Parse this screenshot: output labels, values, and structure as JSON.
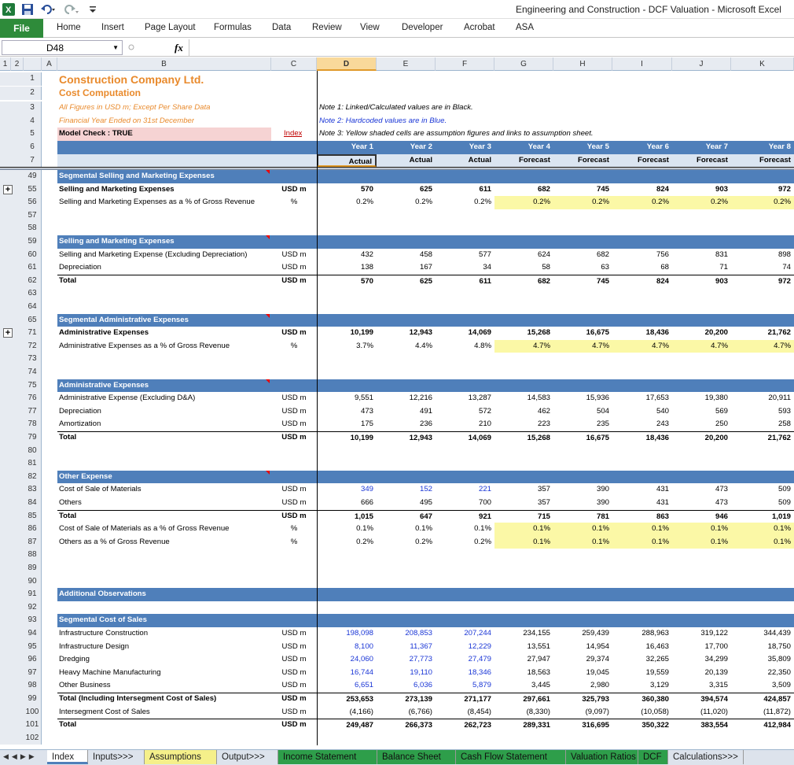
{
  "window": {
    "title": "Engineering and Construction - DCF Valuation  -  Microsoft Excel"
  },
  "ribbon": {
    "file": "File",
    "tabs": [
      "Home",
      "Insert",
      "Page Layout",
      "Formulas",
      "Data",
      "Review",
      "View",
      "Developer",
      "Acrobat",
      "ASA"
    ]
  },
  "formula_bar": {
    "name_box": "D48",
    "fx": "fx",
    "formula": ""
  },
  "outline_levels": [
    "1",
    "2"
  ],
  "columns": [
    "A",
    "B",
    "C",
    "D",
    "E",
    "F",
    "G",
    "H",
    "I",
    "J",
    "K"
  ],
  "selected_column": "D",
  "header_rows": {
    "r1": {
      "num": "1",
      "text": "Construction Company Ltd."
    },
    "r2": {
      "num": "2",
      "text": "Cost Computation"
    },
    "r3": {
      "num": "3",
      "text": "All Figures in USD m; Except Per Share Data",
      "note": "Note 1: Linked/Calculated values are in Black."
    },
    "r4": {
      "num": "4",
      "text": "Financial Year Ended on 31st December",
      "note": "Note 2: Hardcoded values are in Blue."
    },
    "r5": {
      "num": "5",
      "text": "Model Check : TRUE",
      "link": "Index",
      "note": "Note 3: Yellow shaded cells are assumption figures and links to assumption sheet."
    },
    "r6": {
      "num": "6",
      "years": [
        "Year 1",
        "Year 2",
        "Year 3",
        "Year 4",
        "Year 5",
        "Year 6",
        "Year 7",
        "Year 8"
      ]
    },
    "r7": {
      "num": "7",
      "types": [
        "Actual",
        "Actual",
        "Actual",
        "Forecast",
        "Forecast",
        "Forecast",
        "Forecast",
        "Forecast"
      ]
    }
  },
  "rows": [
    {
      "num": "49",
      "kind": "band",
      "label": "Segmental Selling and Marketing Expenses"
    },
    {
      "num": "55",
      "kind": "data",
      "plus": true,
      "bold": true,
      "label": "Selling and Marketing Expenses",
      "unit": "USD m",
      "values": [
        "570",
        "625",
        "611",
        "682",
        "745",
        "824",
        "903",
        "972"
      ]
    },
    {
      "num": "56",
      "kind": "data",
      "label": "Selling and Marketing Expenses as a % of Gross Revenue",
      "unit": "%",
      "yellow": true,
      "values": [
        "0.2%",
        "0.2%",
        "0.2%",
        "0.2%",
        "0.2%",
        "0.2%",
        "0.2%",
        "0.2%"
      ]
    },
    {
      "num": "57",
      "kind": "blank"
    },
    {
      "num": "58",
      "kind": "blank"
    },
    {
      "num": "59",
      "kind": "band",
      "label": "Selling and Marketing Expenses"
    },
    {
      "num": "60",
      "kind": "data",
      "label": "Selling and Marketing Expense (Excluding Depreciation)",
      "unit": "USD m",
      "values": [
        "432",
        "458",
        "577",
        "624",
        "682",
        "756",
        "831",
        "898"
      ]
    },
    {
      "num": "61",
      "kind": "data",
      "label": "Depreciation",
      "unit": "USD m",
      "values": [
        "138",
        "167",
        "34",
        "58",
        "63",
        "68",
        "71",
        "74"
      ]
    },
    {
      "num": "62",
      "kind": "data",
      "total": true,
      "bold": true,
      "label": "Total",
      "unit": "USD m",
      "values": [
        "570",
        "625",
        "611",
        "682",
        "745",
        "824",
        "903",
        "972"
      ]
    },
    {
      "num": "63",
      "kind": "blank"
    },
    {
      "num": "64",
      "kind": "blank"
    },
    {
      "num": "65",
      "kind": "band",
      "label": "Segmental Administrative Expenses"
    },
    {
      "num": "71",
      "kind": "data",
      "plus": true,
      "bold": true,
      "label": "Administrative Expenses",
      "unit": "USD m",
      "values": [
        "10,199",
        "12,943",
        "14,069",
        "15,268",
        "16,675",
        "18,436",
        "20,200",
        "21,762"
      ]
    },
    {
      "num": "72",
      "kind": "data",
      "label": "Administrative Expenses as a % of Gross Revenue",
      "unit": "%",
      "yellow": true,
      "values": [
        "3.7%",
        "4.4%",
        "4.8%",
        "4.7%",
        "4.7%",
        "4.7%",
        "4.7%",
        "4.7%"
      ]
    },
    {
      "num": "73",
      "kind": "blank"
    },
    {
      "num": "74",
      "kind": "blank"
    },
    {
      "num": "75",
      "kind": "band",
      "label": "Administrative Expenses"
    },
    {
      "num": "76",
      "kind": "data",
      "label": "Administrative Expense (Excluding D&A)",
      "unit": "USD m",
      "values": [
        "9,551",
        "12,216",
        "13,287",
        "14,583",
        "15,936",
        "17,653",
        "19,380",
        "20,911"
      ]
    },
    {
      "num": "77",
      "kind": "data",
      "label": "Depreciation",
      "unit": "USD m",
      "values": [
        "473",
        "491",
        "572",
        "462",
        "504",
        "540",
        "569",
        "593"
      ]
    },
    {
      "num": "78",
      "kind": "data",
      "label": "Amortization",
      "unit": "USD m",
      "values": [
        "175",
        "236",
        "210",
        "223",
        "235",
        "243",
        "250",
        "258"
      ]
    },
    {
      "num": "79",
      "kind": "data",
      "total": true,
      "bold": true,
      "label": "Total",
      "unit": "USD m",
      "values": [
        "10,199",
        "12,943",
        "14,069",
        "15,268",
        "16,675",
        "18,436",
        "20,200",
        "21,762"
      ]
    },
    {
      "num": "80",
      "kind": "blank"
    },
    {
      "num": "81",
      "kind": "blank"
    },
    {
      "num": "82",
      "kind": "band",
      "label": "Other Expense"
    },
    {
      "num": "83",
      "kind": "data",
      "label": "Cost of Sale of Materials",
      "unit": "USD m",
      "blue_hist": true,
      "values": [
        "349",
        "152",
        "221",
        "357",
        "390",
        "431",
        "473",
        "509"
      ]
    },
    {
      "num": "84",
      "kind": "data",
      "label": "Others",
      "unit": "USD m",
      "values": [
        "666",
        "495",
        "700",
        "357",
        "390",
        "431",
        "473",
        "509"
      ]
    },
    {
      "num": "85",
      "kind": "data",
      "total": true,
      "bold": true,
      "label": "Total",
      "unit": "USD m",
      "values": [
        "1,015",
        "647",
        "921",
        "715",
        "781",
        "863",
        "946",
        "1,019"
      ]
    },
    {
      "num": "86",
      "kind": "data",
      "label": "Cost of Sale of Materials as a % of Gross Revenue",
      "unit": "%",
      "yellow": true,
      "values": [
        "0.1%",
        "0.1%",
        "0.1%",
        "0.1%",
        "0.1%",
        "0.1%",
        "0.1%",
        "0.1%"
      ]
    },
    {
      "num": "87",
      "kind": "data",
      "label": "Others as a % of Gross Revenue",
      "unit": "%",
      "yellow": true,
      "values": [
        "0.2%",
        "0.2%",
        "0.2%",
        "0.1%",
        "0.1%",
        "0.1%",
        "0.1%",
        "0.1%"
      ]
    },
    {
      "num": "88",
      "kind": "blank"
    },
    {
      "num": "89",
      "kind": "blank"
    },
    {
      "num": "90",
      "kind": "blank"
    },
    {
      "num": "91",
      "kind": "band",
      "label": "Additional Observations",
      "no_tri": true
    },
    {
      "num": "92",
      "kind": "blank"
    },
    {
      "num": "93",
      "kind": "band",
      "label": "Segmental Cost of Sales",
      "no_tri": true
    },
    {
      "num": "94",
      "kind": "data",
      "label": "Infrastructure Construction",
      "unit": "USD m",
      "blue_hist": true,
      "values": [
        "198,098",
        "208,853",
        "207,244",
        "234,155",
        "259,439",
        "288,963",
        "319,122",
        "344,439"
      ]
    },
    {
      "num": "95",
      "kind": "data",
      "label": "Infrastructure Design",
      "unit": "USD m",
      "blue_hist": true,
      "values": [
        "8,100",
        "11,367",
        "12,229",
        "13,551",
        "14,954",
        "16,463",
        "17,700",
        "18,750"
      ]
    },
    {
      "num": "96",
      "kind": "data",
      "label": "Dredging",
      "unit": "USD m",
      "blue_hist": true,
      "values": [
        "24,060",
        "27,773",
        "27,479",
        "27,947",
        "29,374",
        "32,265",
        "34,299",
        "35,809"
      ]
    },
    {
      "num": "97",
      "kind": "data",
      "label": "Heavy Machine Manufacturing",
      "unit": "USD m",
      "blue_hist": true,
      "values": [
        "16,744",
        "19,110",
        "18,346",
        "18,563",
        "19,045",
        "19,559",
        "20,139",
        "22,350"
      ]
    },
    {
      "num": "98",
      "kind": "data",
      "label": "Other Business",
      "unit": "USD m",
      "blue_hist": true,
      "values": [
        "6,651",
        "6,036",
        "5,879",
        "3,445",
        "2,980",
        "3,129",
        "3,315",
        "3,509"
      ]
    },
    {
      "num": "99",
      "kind": "data",
      "total": true,
      "bold": true,
      "label": "Total (Including Intersegment Cost of Sales)",
      "unit": "USD m",
      "values": [
        "253,653",
        "273,139",
        "271,177",
        "297,661",
        "325,793",
        "360,380",
        "394,574",
        "424,857"
      ]
    },
    {
      "num": "100",
      "kind": "data",
      "label": "Intersegment Cost of Sales",
      "unit": "USD m",
      "values": [
        "(4,166)",
        "(6,766)",
        "(8,454)",
        "(8,330)",
        "(9,097)",
        "(10,058)",
        "(11,020)",
        "(11,872)"
      ]
    },
    {
      "num": "101",
      "kind": "data",
      "total": true,
      "bold": true,
      "label": "Total",
      "unit": "USD m",
      "values": [
        "249,487",
        "266,373",
        "262,723",
        "289,331",
        "316,695",
        "350,322",
        "383,554",
        "412,984"
      ]
    },
    {
      "num": "102",
      "kind": "blank"
    }
  ],
  "sheet_tabs": [
    {
      "label": "Index",
      "active": true,
      "color": "#4f7fba"
    },
    {
      "label": "Inputs>>>",
      "color": "#dde3ec"
    },
    {
      "label": "Assumptions",
      "color": "#f5f08a"
    },
    {
      "label": "Output>>>",
      "color": "#dde3ec"
    },
    {
      "label": "Income Statement",
      "color": "#2e9e4a"
    },
    {
      "label": "Balance Sheet",
      "color": "#2e9e4a"
    },
    {
      "label": "Cash Flow Statement",
      "color": "#2e9e4a"
    },
    {
      "label": "Valuation Ratios",
      "color": "#2e9e4a"
    },
    {
      "label": "DCF",
      "color": "#2e9e4a"
    },
    {
      "label": "Calculations>>>",
      "color": "#dde3ec"
    }
  ],
  "colors": {
    "accent_orange": "#e98a2c",
    "band_blue": "#4f7fba",
    "hardcoded_blue": "#1a36d6",
    "assumption_yellow": "#fbf8a6",
    "file_green": "#2e8b3a"
  }
}
